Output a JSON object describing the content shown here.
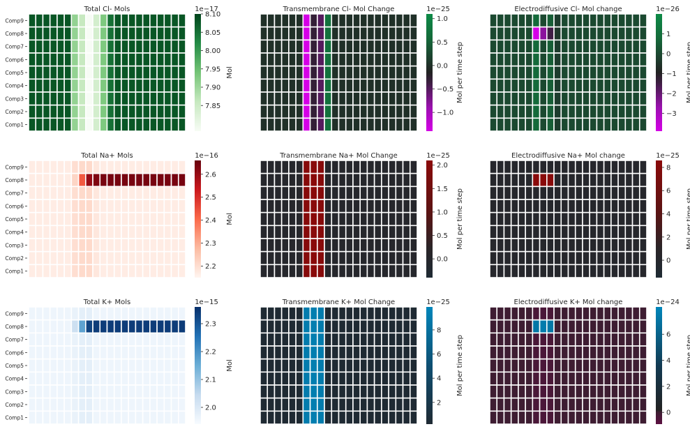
{
  "figure": {
    "rows": [
      "Comp9",
      "Comp8",
      "Comp7",
      "Comp6",
      "Comp5",
      "Comp4",
      "Comp3",
      "Comp2",
      "Comp1"
    ],
    "n_time_cols": 22
  },
  "chart_data": [
    {
      "id": "cl_total",
      "type": "heatmap",
      "title": "Total Cl- Mols",
      "colormap": "greens",
      "zero_centered": false,
      "vmin": 7.78,
      "vmax": 8.1,
      "scale_label": "1e−17",
      "colorbar_label": "Mol",
      "colorbar_ticks": [
        {
          "v": 7.85,
          "label": "7.85"
        },
        {
          "v": 7.9,
          "label": "7.90"
        },
        {
          "v": 7.95,
          "label": "7.95"
        },
        {
          "v": 8.0,
          "label": "8.00"
        },
        {
          "v": 8.05,
          "label": "8.05"
        },
        {
          "v": 8.1,
          "label": "8.10"
        }
      ],
      "show_row_labels": true,
      "base_value": 8.08,
      "column_values": [
        8.08,
        8.08,
        8.08,
        8.08,
        8.08,
        8.08,
        7.91,
        7.86,
        7.78,
        7.84,
        7.93,
        8.05,
        8.08,
        8.08,
        8.08,
        8.08,
        8.08,
        8.08,
        8.08,
        8.08,
        8.08,
        8.08
      ],
      "cells": []
    },
    {
      "id": "cl_tm",
      "type": "heatmap",
      "title": "Transmembrane Cl- Mol Change",
      "colormap": "div_green_magenta",
      "zero_centered": true,
      "vmin": -1.4,
      "vmax": 1.1,
      "scale_label": "1e−25",
      "colorbar_label": "Mol per time step",
      "colorbar_ticks": [
        {
          "v": -1.0,
          "label": "−1.0"
        },
        {
          "v": -0.5,
          "label": "−0.5"
        },
        {
          "v": 0.0,
          "label": "0.0"
        },
        {
          "v": 0.5,
          "label": "0.5"
        },
        {
          "v": 1.0,
          "label": "1.0"
        }
      ],
      "show_row_labels": false,
      "base_value": 0,
      "column_values": [
        0,
        0,
        0,
        0,
        0,
        0,
        -1.4,
        -0.3,
        -0.5,
        0.7,
        0,
        0,
        0,
        0,
        0,
        0,
        0,
        0,
        0,
        0,
        0,
        0
      ],
      "cells": []
    },
    {
      "id": "cl_ed",
      "type": "heatmap",
      "title": "Electrodiffusive Cl- Mol change",
      "colormap": "div_green_magenta",
      "zero_centered": true,
      "vmin": -3.9,
      "vmax": 2.0,
      "scale_label": "1e−26",
      "colorbar_label": "Mol per time step",
      "colorbar_ticks": [
        {
          "v": -3,
          "label": "−3"
        },
        {
          "v": -2,
          "label": "−2"
        },
        {
          "v": -1,
          "label": "−1"
        },
        {
          "v": 0,
          "label": "0"
        },
        {
          "v": 1,
          "label": "1"
        }
      ],
      "show_row_labels": false,
      "base_value": 0,
      "column_values": [
        0,
        0,
        0,
        0,
        0,
        0,
        0.8,
        0,
        0.5,
        -0.3,
        0,
        0,
        0,
        0,
        0,
        0,
        0,
        0,
        0,
        0,
        0,
        0
      ],
      "cells": [
        {
          "row": 1,
          "col": 6,
          "value": -3.9
        },
        {
          "row": 1,
          "col": 7,
          "value": -2.5
        },
        {
          "row": 1,
          "col": 8,
          "value": -1.5
        },
        {
          "row": 1,
          "col": 9,
          "value": -0.4
        }
      ]
    },
    {
      "id": "na_total",
      "type": "heatmap",
      "title": "Total Na+ Mols",
      "colormap": "reds",
      "zero_centered": false,
      "vmin": 2.15,
      "vmax": 2.66,
      "scale_label": "1e−16",
      "colorbar_label": "Mol",
      "colorbar_ticks": [
        {
          "v": 2.2,
          "label": "2.2"
        },
        {
          "v": 2.3,
          "label": "2.3"
        },
        {
          "v": 2.4,
          "label": "2.4"
        },
        {
          "v": 2.5,
          "label": "2.5"
        },
        {
          "v": 2.6,
          "label": "2.6"
        }
      ],
      "show_row_labels": true,
      "base_value": 2.17,
      "column_values": [
        2.17,
        2.17,
        2.17,
        2.17,
        2.17,
        2.17,
        2.2,
        2.21,
        2.21,
        2.18,
        2.17,
        2.17,
        2.17,
        2.17,
        2.17,
        2.17,
        2.17,
        2.17,
        2.17,
        2.17,
        2.17,
        2.17
      ],
      "cells": [
        {
          "row": 1,
          "col": 6,
          "value": 2.22
        },
        {
          "row": 1,
          "col": 7,
          "value": 2.43
        },
        {
          "row": 1,
          "col": 8,
          "value": 2.6
        },
        {
          "row": 1,
          "col": 9,
          "value": 2.63
        },
        {
          "row": 1,
          "col": 10,
          "value": 2.64
        },
        {
          "row": 1,
          "col": 11,
          "value": 2.64
        },
        {
          "row": 1,
          "col": 12,
          "value": 2.64
        },
        {
          "row": 1,
          "col": 13,
          "value": 2.64
        },
        {
          "row": 1,
          "col": 14,
          "value": 2.64
        },
        {
          "row": 1,
          "col": 15,
          "value": 2.64
        },
        {
          "row": 1,
          "col": 16,
          "value": 2.64
        },
        {
          "row": 1,
          "col": 17,
          "value": 2.64
        },
        {
          "row": 1,
          "col": 18,
          "value": 2.64
        },
        {
          "row": 1,
          "col": 19,
          "value": 2.64
        },
        {
          "row": 1,
          "col": 20,
          "value": 2.64
        },
        {
          "row": 1,
          "col": 21,
          "value": 2.64
        }
      ]
    },
    {
      "id": "na_tm",
      "type": "heatmap",
      "title": "Transmembrane Na+ Mol Change",
      "colormap": "dark_red",
      "zero_centered": false,
      "vmin": -0.4,
      "vmax": 2.1,
      "scale_label": "1e−25",
      "colorbar_label": "Mol per time step",
      "colorbar_ticks": [
        {
          "v": 0.0,
          "label": "0.0"
        },
        {
          "v": 0.5,
          "label": "0.5"
        },
        {
          "v": 1.0,
          "label": "1.0"
        },
        {
          "v": 1.5,
          "label": "1.5"
        },
        {
          "v": 2.0,
          "label": "2.0"
        }
      ],
      "show_row_labels": false,
      "base_value": 0,
      "column_values": [
        0,
        0,
        0,
        0,
        0,
        0,
        2.0,
        2.05,
        2.0,
        0,
        0,
        0,
        0,
        0,
        0,
        0,
        0,
        0,
        0,
        0,
        0,
        0
      ],
      "cells": []
    },
    {
      "id": "na_ed",
      "type": "heatmap",
      "title": "Electrodiffusive Na+ Mol change",
      "colormap": "dark_red",
      "zero_centered": false,
      "vmin": -1.5,
      "vmax": 8.6,
      "scale_label": "1e−25",
      "colorbar_label": "Mol per time step",
      "colorbar_ticks": [
        {
          "v": 0,
          "label": "0"
        },
        {
          "v": 2,
          "label": "2"
        },
        {
          "v": 4,
          "label": "4"
        },
        {
          "v": 6,
          "label": "6"
        },
        {
          "v": 8,
          "label": "8"
        }
      ],
      "show_row_labels": false,
      "base_value": 0,
      "column_values": [
        0,
        0,
        0,
        0,
        0,
        0,
        0,
        0,
        0,
        0,
        0,
        0,
        0,
        0,
        0,
        0,
        0,
        0,
        0,
        0,
        0,
        0
      ],
      "cells": [
        {
          "row": 1,
          "col": 6,
          "value": 8.5
        },
        {
          "row": 1,
          "col": 7,
          "value": 8.5
        },
        {
          "row": 1,
          "col": 8,
          "value": 8.3
        }
      ]
    },
    {
      "id": "k_total",
      "type": "heatmap",
      "title": "Total K+ Mols",
      "colormap": "blues",
      "zero_centered": false,
      "vmin": 1.94,
      "vmax": 2.36,
      "scale_label": "1e−15",
      "colorbar_label": "Mol",
      "colorbar_ticks": [
        {
          "v": 2.0,
          "label": "2.0"
        },
        {
          "v": 2.1,
          "label": "2.1"
        },
        {
          "v": 2.2,
          "label": "2.2"
        },
        {
          "v": 2.3,
          "label": "2.3"
        }
      ],
      "show_row_labels": true,
      "base_value": 1.96,
      "column_values": [
        1.96,
        1.96,
        1.96,
        1.96,
        1.96,
        1.96,
        1.97,
        1.98,
        1.98,
        1.96,
        1.96,
        1.96,
        1.96,
        1.96,
        1.96,
        1.96,
        1.96,
        1.96,
        1.96,
        1.96,
        1.96,
        1.96
      ],
      "cells": [
        {
          "row": 1,
          "col": 6,
          "value": 2.03
        },
        {
          "row": 1,
          "col": 7,
          "value": 2.17
        },
        {
          "row": 1,
          "col": 8,
          "value": 2.33
        },
        {
          "row": 1,
          "col": 9,
          "value": 2.34
        },
        {
          "row": 1,
          "col": 10,
          "value": 2.34
        },
        {
          "row": 1,
          "col": 11,
          "value": 2.34
        },
        {
          "row": 1,
          "col": 12,
          "value": 2.34
        },
        {
          "row": 1,
          "col": 13,
          "value": 2.34
        },
        {
          "row": 1,
          "col": 14,
          "value": 2.34
        },
        {
          "row": 1,
          "col": 15,
          "value": 2.34
        },
        {
          "row": 1,
          "col": 16,
          "value": 2.34
        },
        {
          "row": 1,
          "col": 17,
          "value": 2.34
        },
        {
          "row": 1,
          "col": 18,
          "value": 2.34
        },
        {
          "row": 1,
          "col": 19,
          "value": 2.34
        },
        {
          "row": 1,
          "col": 20,
          "value": 2.34
        },
        {
          "row": 1,
          "col": 21,
          "value": 2.34
        }
      ]
    },
    {
      "id": "k_tm",
      "type": "heatmap",
      "title": "Transmembrane K+ Mol Change",
      "colormap": "dark_blue",
      "zero_centered": false,
      "vmin": 0.2,
      "vmax": 9.9,
      "scale_label": "1e−25",
      "colorbar_label": "Mol per time step",
      "colorbar_ticks": [
        {
          "v": 2,
          "label": "2"
        },
        {
          "v": 4,
          "label": "4"
        },
        {
          "v": 6,
          "label": "6"
        },
        {
          "v": 8,
          "label": "8"
        }
      ],
      "show_row_labels": false,
      "base_value": 0.2,
      "column_values": [
        0.2,
        0.2,
        0.2,
        0.2,
        0.2,
        0.2,
        9.0,
        9.2,
        9.0,
        0.2,
        0.2,
        0.2,
        0.2,
        0.2,
        0.2,
        0.2,
        0.2,
        0.2,
        0.2,
        0.2,
        0.2,
        0.2
      ],
      "cells": []
    },
    {
      "id": "k_ed",
      "type": "heatmap",
      "title": "Electrodiffusive K+ Mol change",
      "colormap": "div_blue_purple",
      "zero_centered": true,
      "vmin": -0.9,
      "vmax": 8.1,
      "scale_label": "1e−24",
      "colorbar_label": "Mol per time step",
      "colorbar_ticks": [
        {
          "v": 0,
          "label": "0"
        },
        {
          "v": 2,
          "label": "2"
        },
        {
          "v": 4,
          "label": "4"
        },
        {
          "v": 6,
          "label": "6"
        }
      ],
      "show_row_labels": false,
      "base_value": 0,
      "column_values": [
        0,
        0,
        0,
        0,
        0,
        0,
        -0.35,
        -0.4,
        -0.35,
        0,
        0,
        0,
        0,
        0,
        0,
        0,
        0,
        0,
        0,
        0,
        0,
        0
      ],
      "cells": [
        {
          "row": 1,
          "col": 6,
          "value": 7.2
        },
        {
          "row": 1,
          "col": 7,
          "value": 7.5
        },
        {
          "row": 1,
          "col": 8,
          "value": 7.2
        }
      ]
    }
  ]
}
